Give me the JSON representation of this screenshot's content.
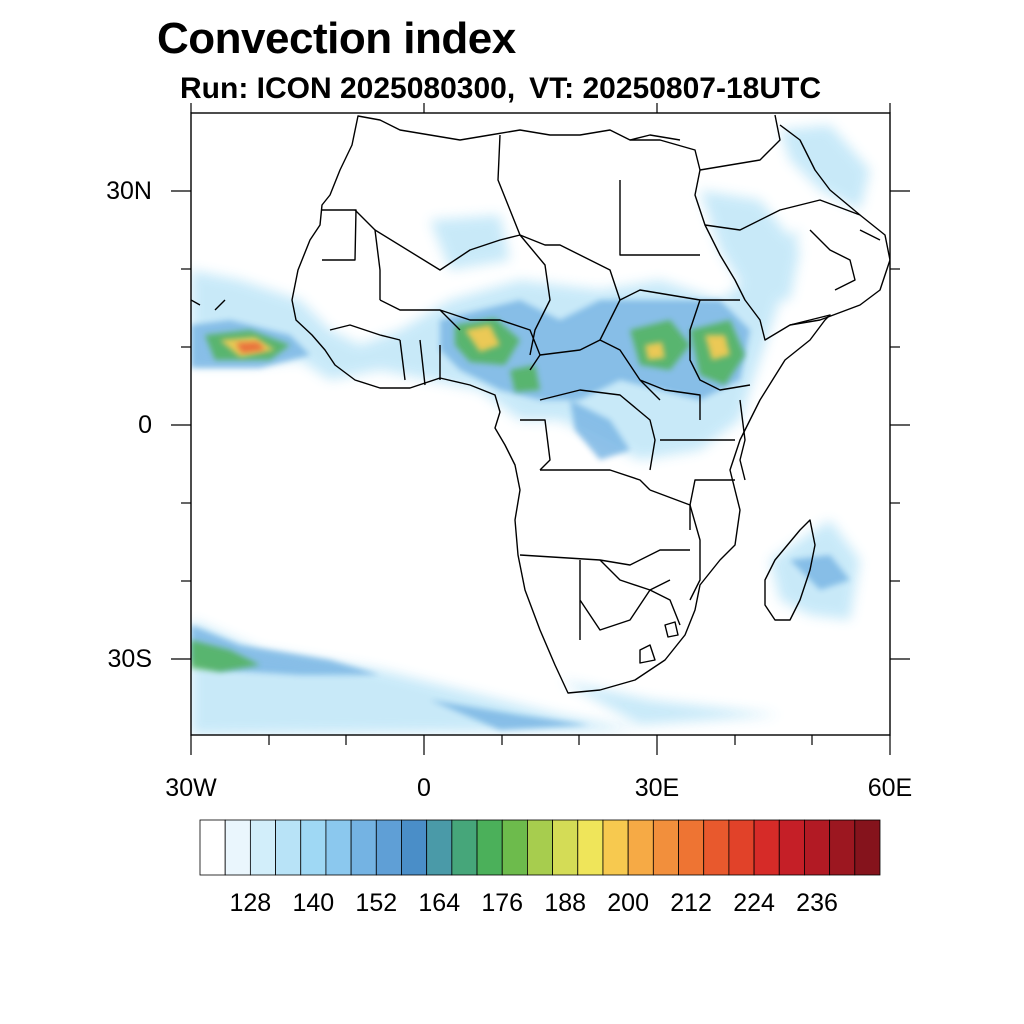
{
  "title": "Convection index",
  "subtitle": {
    "run_label": "Run: ICON 2025080300,",
    "vt_label": "VT: 20250807-18UTC"
  },
  "axes": {
    "y_labels": [
      "30N",
      "0",
      "30S"
    ],
    "x_labels": [
      "30W",
      "0",
      "30E",
      "60E"
    ]
  },
  "colorbar": {
    "labels": [
      "128",
      "140",
      "152",
      "164",
      "176",
      "188",
      "200",
      "212",
      "224",
      "236"
    ],
    "colors": [
      "#ffffff",
      "#eaf6fd",
      "#d2eefa",
      "#b8e3f7",
      "#9fd8f4",
      "#8bc8ee",
      "#74b3e3",
      "#5f9fd6",
      "#4a8ec8",
      "#4a9aa8",
      "#46a67a",
      "#4bb05a",
      "#6dbb4c",
      "#a7cd4e",
      "#d4dc56",
      "#efe55a",
      "#f7c94f",
      "#f6aa45",
      "#f28f3c",
      "#ee7433",
      "#e8592d",
      "#e14229",
      "#d62b28",
      "#c51f27",
      "#b21a24",
      "#9c1720",
      "#85131c"
    ]
  },
  "map_style": {
    "land_border": "#000000",
    "light_convection": "#bfe6f8",
    "moderate_convection": "#5f9fd6",
    "strong_convection": "#4bb05a",
    "intense_convection": "#f2c84c",
    "extreme_convection": "#e14229"
  }
}
